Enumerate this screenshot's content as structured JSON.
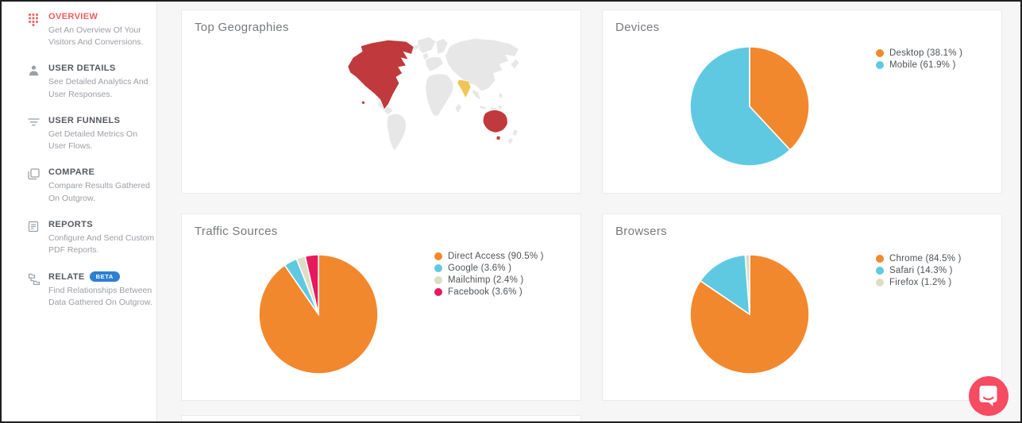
{
  "colors": {
    "accent_red": "#f25b5c",
    "badge_blue": "#2d7fd3",
    "chat_pink": "#f74b61",
    "pie_orange": "#f2882d",
    "pie_cyan": "#5fc9e2",
    "pie_beige": "#dedcc5",
    "pie_crimson": "#e8185d",
    "map_red": "#c0393c",
    "map_yellow": "#f0c555",
    "map_base": "#e7e7e7",
    "map_border": "#ffffff"
  },
  "sidebar": {
    "items": [
      {
        "label": "OVERVIEW",
        "description": "Get An Overview Of Your Visitors And Conversions.",
        "icon": "grid-dots",
        "active": true
      },
      {
        "label": "USER DETAILS",
        "description": "See Detailed Analytics And User Responses.",
        "icon": "user",
        "active": false
      },
      {
        "label": "USER FUNNELS",
        "description": "Get Detailed Metrics On User Flows.",
        "icon": "funnel",
        "active": false
      },
      {
        "label": "COMPARE",
        "description": "Compare Results Gathered On Outgrow.",
        "icon": "copy",
        "active": false
      },
      {
        "label": "REPORTS",
        "description": "Configure And Send Custom PDF Reports.",
        "icon": "report",
        "active": false
      },
      {
        "label": "RELATE",
        "badge": "BETA",
        "description": "Find Relationships Between Data Gathered On Outgrow.",
        "icon": "relate",
        "active": false
      }
    ]
  },
  "chart_data": [
    {
      "type": "map",
      "title": "Top Geographies",
      "regions": [
        {
          "name": "North America",
          "color": "#c0393c",
          "highlight": "red"
        },
        {
          "name": "Australia",
          "color": "#c0393c",
          "highlight": "red"
        },
        {
          "name": "India",
          "color": "#f0c555",
          "highlight": "yellow"
        }
      ],
      "base_color": "#e7e7e7"
    },
    {
      "type": "pie",
      "title": "Devices",
      "labels": [
        "Desktop",
        "Mobile"
      ],
      "values": [
        38.1,
        61.9
      ],
      "colors": [
        "#f2882d",
        "#5fc9e2"
      ],
      "legend_position": "right",
      "start_angle_deg": 0,
      "direction": "clockwise"
    },
    {
      "type": "pie",
      "title": "Traffic Sources",
      "labels": [
        "Direct Access",
        "Google",
        "Mailchimp",
        "Facebook"
      ],
      "values": [
        90.5,
        3.6,
        2.4,
        3.6
      ],
      "colors": [
        "#f2882d",
        "#5fc9e2",
        "#dedcc5",
        "#e8185d"
      ],
      "legend_position": "right",
      "start_angle_deg": 0,
      "direction": "clockwise"
    },
    {
      "type": "pie",
      "title": "Browsers",
      "labels": [
        "Chrome",
        "Safari",
        "Firefox"
      ],
      "values": [
        84.5,
        14.3,
        1.2
      ],
      "colors": [
        "#f2882d",
        "#5fc9e2",
        "#dedcc5"
      ],
      "legend_position": "right",
      "start_angle_deg": 0,
      "direction": "clockwise"
    }
  ]
}
